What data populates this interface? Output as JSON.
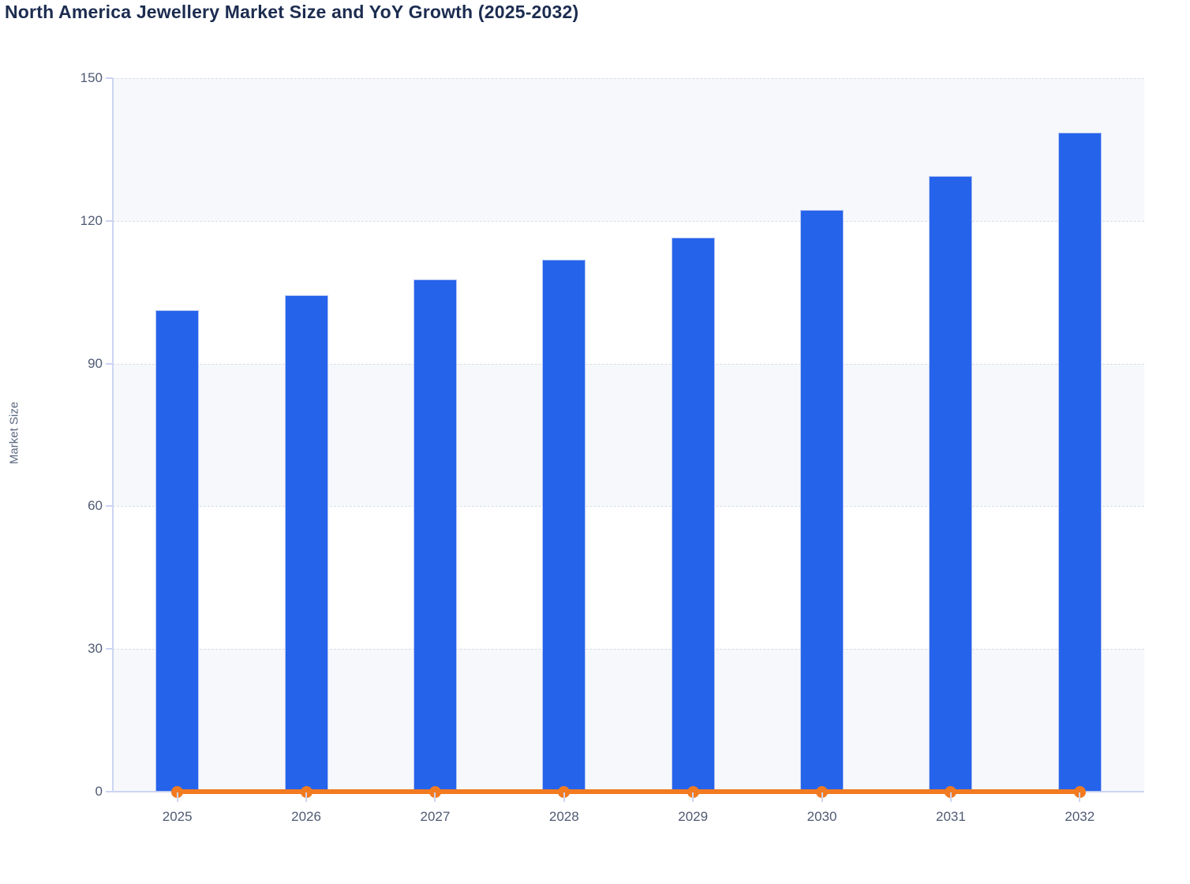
{
  "title": "North America Jewellery Market Size and YoY Growth (2025-2032)",
  "ylabel": "Market Size",
  "colors": {
    "bar_fill": "#2663eb",
    "bar_border": "#b6c6f2",
    "line": "#f27a20",
    "title_text": "#1c2c50",
    "axis_text": "#4f5a73",
    "axis_line": "#ccd5f2",
    "gridline": "#d8dce5",
    "band_fill": "#f6f8fb",
    "background": "#ffffff"
  },
  "chart_data": {
    "type": "bar",
    "title": "North America Jewellery Market Size and YoY Growth (2025-2032)",
    "xlabel": "",
    "ylabel": "Market Size",
    "categories": [
      "2025",
      "2026",
      "2027",
      "2028",
      "2029",
      "2030",
      "2031",
      "2032"
    ],
    "series": [
      {
        "name": "Market Size",
        "type": "bar",
        "color": "#2663eb",
        "values": [
          101.3,
          104.3,
          107.7,
          111.8,
          116.5,
          122.3,
          129.4,
          138.5
        ]
      },
      {
        "name": "YoY Growth",
        "type": "line",
        "color": "#f27a20",
        "values": [
          0,
          0,
          0,
          0,
          0,
          0,
          0,
          0
        ]
      }
    ],
    "ylim": [
      0,
      150
    ],
    "yticks": [
      0,
      30,
      60,
      90,
      120,
      150
    ],
    "grid": "horizontal-dashed",
    "plot_bands": "alternating-light",
    "legend": "none"
  }
}
